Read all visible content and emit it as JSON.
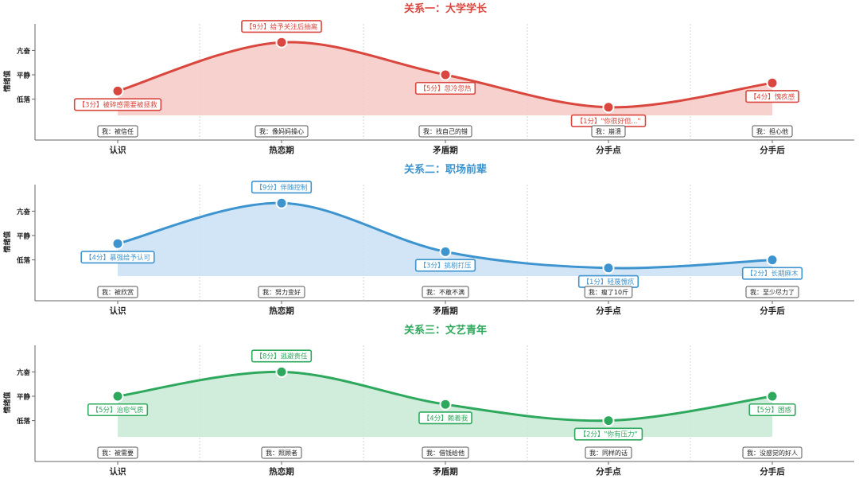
{
  "chart_data": [
    {
      "type": "line",
      "title": "关系一：大学学长",
      "ylabel": "情绪值",
      "y_ticks": [
        "低落",
        "平静",
        "亢奋"
      ],
      "categories": [
        "认识",
        "热恋期",
        "矛盾期",
        "分手点",
        "分手后"
      ],
      "values": [
        3,
        9,
        5,
        1,
        4
      ],
      "annotations": [
        "【3分】被碎感需要被拯救",
        "【9分】给予关注后抽离",
        "【5分】忽冷忽热",
        "【1分】\"你很好但...\"",
        "【4分】愧疚感"
      ],
      "self_notes": [
        "我：被信任",
        "我：像妈妈操心",
        "我：找自己的错",
        "我：崩溃",
        "我：担心他"
      ],
      "color": "#d9473e",
      "fill": "#f6c9c6"
    },
    {
      "type": "line",
      "title": "关系二：职场前辈",
      "ylabel": "情绪值",
      "y_ticks": [
        "低落",
        "平静",
        "亢奋"
      ],
      "categories": [
        "认识",
        "热恋期",
        "矛盾期",
        "分手点",
        "分手后"
      ],
      "values": [
        4,
        9,
        3,
        1,
        2
      ],
      "annotations": [
        "【4分】慕强给予认可",
        "【9分】伴随控制",
        "【3分】挑剔打压",
        "【1分】轻蔑愧疚",
        "【2分】长期麻木"
      ],
      "self_notes": [
        "我：被欣赏",
        "我：努力变好",
        "我：不敢不满",
        "我：瘦了10斤",
        "我：至少尽力了"
      ],
      "color": "#3d94cf",
      "fill": "#c9e1f4"
    },
    {
      "type": "line",
      "title": "关系三：文艺青年",
      "ylabel": "情绪值",
      "y_ticks": [
        "低落",
        "平静",
        "亢奋"
      ],
      "categories": [
        "认识",
        "热恋期",
        "矛盾期",
        "分手点",
        "分手后"
      ],
      "values": [
        5,
        8,
        4,
        2,
        5
      ],
      "annotations": [
        "【5分】治愈气质",
        "【8分】逃避责任",
        "【4分】赖着我",
        "【2分】\"你有压力\"",
        "【5分】困惑"
      ],
      "self_notes": [
        "我：被需要",
        "我：照顾者",
        "我：借钱给他",
        "我：同样的话",
        "我：没感觉的好人"
      ],
      "color": "#2da85c",
      "fill": "#c8e9d3"
    }
  ]
}
